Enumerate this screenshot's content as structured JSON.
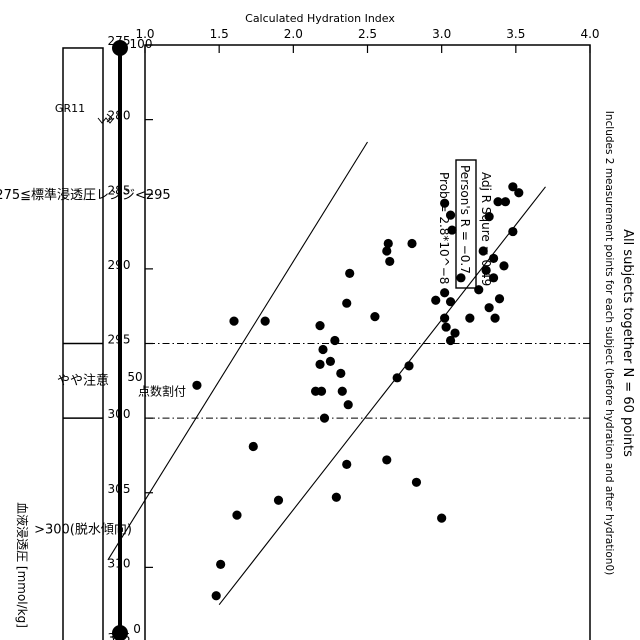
{
  "chart_data": {
    "type": "scatter",
    "title": "All subjects together N = 60 points",
    "subtitle": "Includes 2 measurement points for each subject (before hydration and after hydration0)",
    "xlabel": "血液浸透圧 [mmol/kg]",
    "ylabel": "Calculated Hydration Index",
    "xlim": [
      275,
      315
    ],
    "ylim": [
      1.0,
      4.0
    ],
    "x_ticks": [
      "275",
      "280",
      "285",
      "290",
      "295",
      "300",
      "305",
      "310",
      "315"
    ],
    "y_ticks": [
      "1.0",
      "1.5",
      "2.0",
      "2.5",
      "3.0",
      "3.5",
      "4.0"
    ],
    "grid": false,
    "stats": [
      "Adj R Squre = 0.49",
      "Person's R = −0.7",
      "Prob = 2.8*10^−8"
    ],
    "fit_lines": [
      {
        "x": [
          284.5,
          312.5
        ],
        "y": [
          3.7,
          1.5
        ]
      },
      {
        "x": [
          281.5,
          309.5
        ],
        "y": [
          2.5,
          0.75
        ]
      }
    ],
    "vlines": [
      295,
      300
    ],
    "series": [
      {
        "values": [
          {
            "x": 284.5,
            "y": 3.48
          },
          {
            "x": 284.9,
            "y": 3.52
          },
          {
            "x": 285.5,
            "y": 3.43
          },
          {
            "x": 285.5,
            "y": 3.38
          },
          {
            "x": 286.5,
            "y": 3.32
          },
          {
            "x": 287.5,
            "y": 3.48
          },
          {
            "x": 285.6,
            "y": 3.02
          },
          {
            "x": 286.4,
            "y": 3.06
          },
          {
            "x": 287.4,
            "y": 3.07
          },
          {
            "x": 288.8,
            "y": 3.28
          },
          {
            "x": 289.3,
            "y": 3.35
          },
          {
            "x": 289.8,
            "y": 3.42
          },
          {
            "x": 290.6,
            "y": 3.35
          },
          {
            "x": 290.1,
            "y": 3.3
          },
          {
            "x": 290.6,
            "y": 3.13
          },
          {
            "x": 291.4,
            "y": 3.25
          },
          {
            "x": 292.0,
            "y": 3.39
          },
          {
            "x": 292.6,
            "y": 3.32
          },
          {
            "x": 293.3,
            "y": 3.19
          },
          {
            "x": 292.2,
            "y": 3.06
          },
          {
            "x": 291.6,
            "y": 3.02
          },
          {
            "x": 292.1,
            "y": 2.96
          },
          {
            "x": 293.3,
            "y": 3.02
          },
          {
            "x": 293.9,
            "y": 3.03
          },
          {
            "x": 294.8,
            "y": 3.06
          },
          {
            "x": 294.3,
            "y": 3.09
          },
          {
            "x": 293.3,
            "y": 3.36
          },
          {
            "x": 288.3,
            "y": 2.64
          },
          {
            "x": 288.8,
            "y": 2.63
          },
          {
            "x": 289.5,
            "y": 2.65
          },
          {
            "x": 288.3,
            "y": 2.8
          },
          {
            "x": 290.3,
            "y": 2.38
          },
          {
            "x": 293.2,
            "y": 2.55
          },
          {
            "x": 296.5,
            "y": 2.78
          },
          {
            "x": 297.3,
            "y": 2.7
          },
          {
            "x": 296.2,
            "y": 2.25
          },
          {
            "x": 296.4,
            "y": 2.18
          },
          {
            "x": 295.4,
            "y": 2.2
          },
          {
            "x": 293.8,
            "y": 2.18
          },
          {
            "x": 292.3,
            "y": 2.36
          },
          {
            "x": 299.1,
            "y": 2.37
          },
          {
            "x": 298.2,
            "y": 2.33
          },
          {
            "x": 297.0,
            "y": 2.32
          },
          {
            "x": 300.0,
            "y": 2.21
          },
          {
            "x": 298.2,
            "y": 2.19
          },
          {
            "x": 298.2,
            "y": 2.15
          },
          {
            "x": 302.8,
            "y": 2.63
          },
          {
            "x": 303.1,
            "y": 2.36
          },
          {
            "x": 305.3,
            "y": 2.29
          },
          {
            "x": 294.8,
            "y": 2.28
          },
          {
            "x": 304.3,
            "y": 2.83
          },
          {
            "x": 306.7,
            "y": 3.0
          },
          {
            "x": 297.8,
            "y": 1.35
          },
          {
            "x": 305.5,
            "y": 1.9
          },
          {
            "x": 301.9,
            "y": 1.73
          },
          {
            "x": 293.5,
            "y": 1.81
          },
          {
            "x": 293.5,
            "y": 1.6
          },
          {
            "x": 306.5,
            "y": 1.62
          },
          {
            "x": 309.8,
            "y": 1.51
          },
          {
            "x": 311.9,
            "y": 1.48
          }
        ]
      }
    ],
    "score_bar": {
      "ticks": [
        "100",
        "50",
        "0"
      ],
      "annotation": "点数割付",
      "zones": [
        {
          "label": "275≦標準浸透圧レンジ<295"
        },
        {
          "label": "やや注意"
        },
        {
          "label": ">300(脱水傾向)"
        }
      ]
    },
    "marker_label": "GR11"
  }
}
